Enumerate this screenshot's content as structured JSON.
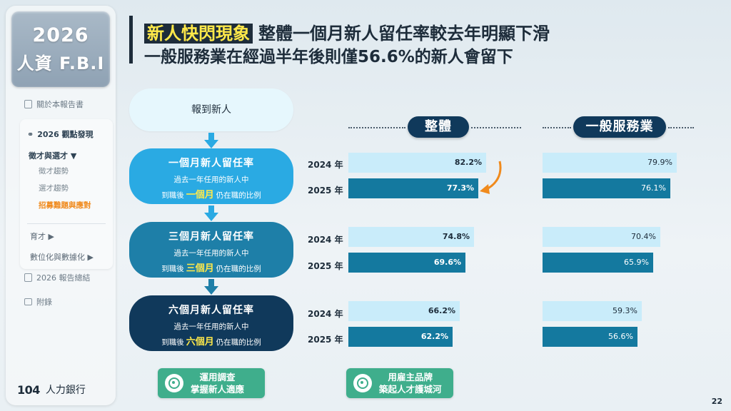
{
  "sidebar": {
    "brand_year": "2026",
    "brand_name": "人資 F.B.I",
    "about": "關於本報告書",
    "section": "2026 觀點發現",
    "sub_head": "徵才與選才 ▼",
    "sub_items": [
      "徵才趨勢",
      "選才趨勢",
      "招募難題與應對"
    ],
    "item_train": "育才 ▶",
    "item_digital": "數位化與數據化 ▶",
    "summary": "2026 報告總結",
    "appendix": "附錄",
    "logo_num": "104",
    "logo_text": "人力銀行"
  },
  "header": {
    "highlight": "新人快閃現象",
    "line1": "整體一個月新人留任率較去年明顯下滑",
    "line2": "一般服務業在經過半年後則僅56.6%的新人會留下"
  },
  "flow": {
    "start": "報到新人",
    "steps": [
      {
        "title": "一個月新人留任率",
        "desc1": "過去一年任用的新人中",
        "desc2_pre": "到職後",
        "desc2_hl": "一個月",
        "desc2_post": "仍在職的比例"
      },
      {
        "title": "三個月新人留任率",
        "desc1": "過去一年任用的新人中",
        "desc2_pre": "到職後",
        "desc2_hl": "三個月",
        "desc2_post": "仍在職的比例"
      },
      {
        "title": "六個月新人留任率",
        "desc1": "過去一年任用的新人中",
        "desc2_pre": "到職後",
        "desc2_hl": "六個月",
        "desc2_post": "仍在職的比例"
      }
    ]
  },
  "columns": {
    "overall": "整體",
    "general": "一般服務業"
  },
  "years": [
    "2024 年",
    "2025 年"
  ],
  "chart_data": {
    "type": "bar",
    "categories": [
      "一個月新人留任率",
      "三個月新人留任率",
      "六個月新人留任率"
    ],
    "series": [
      {
        "name": "整體",
        "values_2024": [
          82.2,
          74.8,
          66.2
        ],
        "values_2025": [
          77.3,
          69.6,
          62.2
        ],
        "labels_2024": [
          "82.2%",
          "74.8%",
          "66.2%"
        ],
        "labels_2025": [
          "77.3%",
          "69.6%",
          "62.2%"
        ]
      },
      {
        "name": "一般服務業",
        "values_2024": [
          79.9,
          70.4,
          59.3
        ],
        "values_2025": [
          76.1,
          65.9,
          56.6
        ],
        "labels_2024": [
          "79.9%",
          "70.4%",
          "59.3%"
        ],
        "labels_2025": [
          "76.1%",
          "65.9%",
          "56.6%"
        ]
      }
    ],
    "colors": {
      "y2024": "#c9ecfa",
      "y2025": "#14799f"
    }
  },
  "buttons": {
    "left_l1": "運用調查",
    "left_l2": "掌握新人適應",
    "right_l1": "用雇主品牌",
    "right_l2": "築起人才護城河"
  },
  "page_number": "22"
}
